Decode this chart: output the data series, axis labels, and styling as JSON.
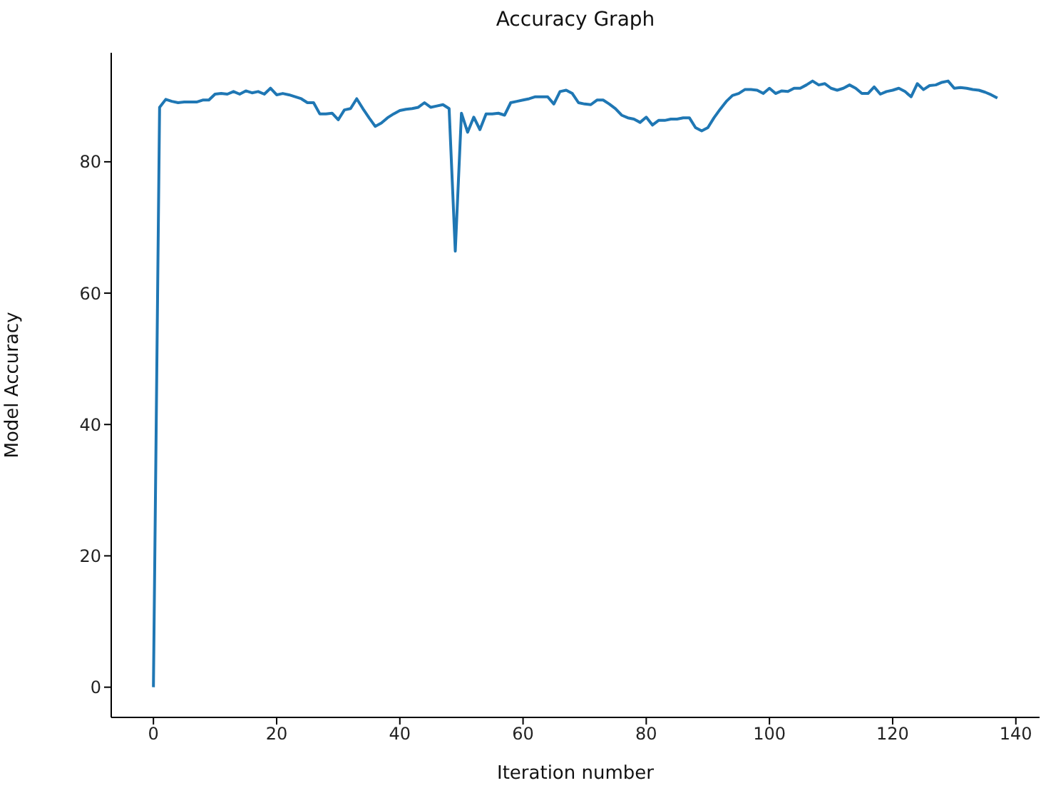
{
  "chart_data": {
    "type": "line",
    "title": "Accuracy Graph",
    "xlabel": "Iteration number",
    "ylabel": "Model Accuracy",
    "xlim": [
      -6.85,
      143.85
    ],
    "xticks": [
      0,
      20,
      40,
      60,
      80,
      100,
      120,
      140
    ],
    "ylim": [
      -4.6,
      96.6
    ],
    "yticks": [
      0,
      20,
      40,
      60,
      80
    ],
    "grid": false,
    "legend": false,
    "marker": "none",
    "line_style": "solid",
    "x": [
      0,
      1,
      2,
      3,
      4,
      5,
      6,
      7,
      8,
      9,
      10,
      11,
      12,
      13,
      14,
      15,
      16,
      17,
      18,
      19,
      20,
      21,
      22,
      23,
      24,
      25,
      26,
      27,
      28,
      29,
      30,
      31,
      32,
      33,
      34,
      35,
      36,
      37,
      38,
      39,
      40,
      41,
      42,
      43,
      44,
      45,
      46,
      47,
      48,
      49,
      50,
      51,
      52,
      53,
      54,
      55,
      56,
      57,
      58,
      59,
      60,
      61,
      62,
      63,
      64,
      65,
      66,
      67,
      68,
      69,
      70,
      71,
      72,
      73,
      74,
      75,
      76,
      77,
      78,
      79,
      80,
      81,
      82,
      83,
      84,
      85,
      86,
      87,
      88,
      89,
      90,
      91,
      92,
      93,
      94,
      95,
      96,
      97,
      98,
      99,
      100,
      101,
      102,
      103,
      104,
      105,
      106,
      107,
      108,
      109,
      110,
      111,
      112,
      113,
      114,
      115,
      116,
      117,
      118,
      119,
      120,
      121,
      122,
      123,
      124,
      125,
      126,
      127,
      128,
      129,
      130,
      131,
      132,
      133,
      134,
      135,
      136,
      137
    ],
    "series": [
      {
        "color": "#1f77b4",
        "values": [
          0,
          88.3,
          89.5,
          89.2,
          89.0,
          89.1,
          89.1,
          89.1,
          89.4,
          89.4,
          90.3,
          90.4,
          90.3,
          90.7,
          90.3,
          90.8,
          90.5,
          90.7,
          90.3,
          91.2,
          90.2,
          90.4,
          90.2,
          89.9,
          89.6,
          89.0,
          89.0,
          87.3,
          87.3,
          87.4,
          86.4,
          87.9,
          88.1,
          89.6,
          88.1,
          86.7,
          85.4,
          85.9,
          86.7,
          87.3,
          87.8,
          88.0,
          88.1,
          88.3,
          89.0,
          88.3,
          88.5,
          88.7,
          88.1,
          66.4,
          87.4,
          84.5,
          86.8,
          84.9,
          87.3,
          87.3,
          87.4,
          87.1,
          89.0,
          89.2,
          89.4,
          89.6,
          89.9,
          89.9,
          89.9,
          88.8,
          90.7,
          90.9,
          90.4,
          89.0,
          88.8,
          88.7,
          89.4,
          89.4,
          88.8,
          88.1,
          87.1,
          86.7,
          86.5,
          86.0,
          86.8,
          85.6,
          86.3,
          86.3,
          86.5,
          86.5,
          86.7,
          86.7,
          85.2,
          84.7,
          85.2,
          86.7,
          88.0,
          89.2,
          90.1,
          90.4,
          91.0,
          91.0,
          90.9,
          90.4,
          91.2,
          90.4,
          90.8,
          90.7,
          91.2,
          91.2,
          91.7,
          92.3,
          91.7,
          91.9,
          91.2,
          90.9,
          91.2,
          91.7,
          91.2,
          90.4,
          90.4,
          91.4,
          90.3,
          90.7,
          90.9,
          91.2,
          90.7,
          89.9,
          91.9,
          91.0,
          91.6,
          91.7,
          92.1,
          92.3,
          91.2,
          91.3,
          91.2,
          91.0,
          90.9,
          90.6,
          90.2,
          89.7
        ]
      }
    ]
  }
}
